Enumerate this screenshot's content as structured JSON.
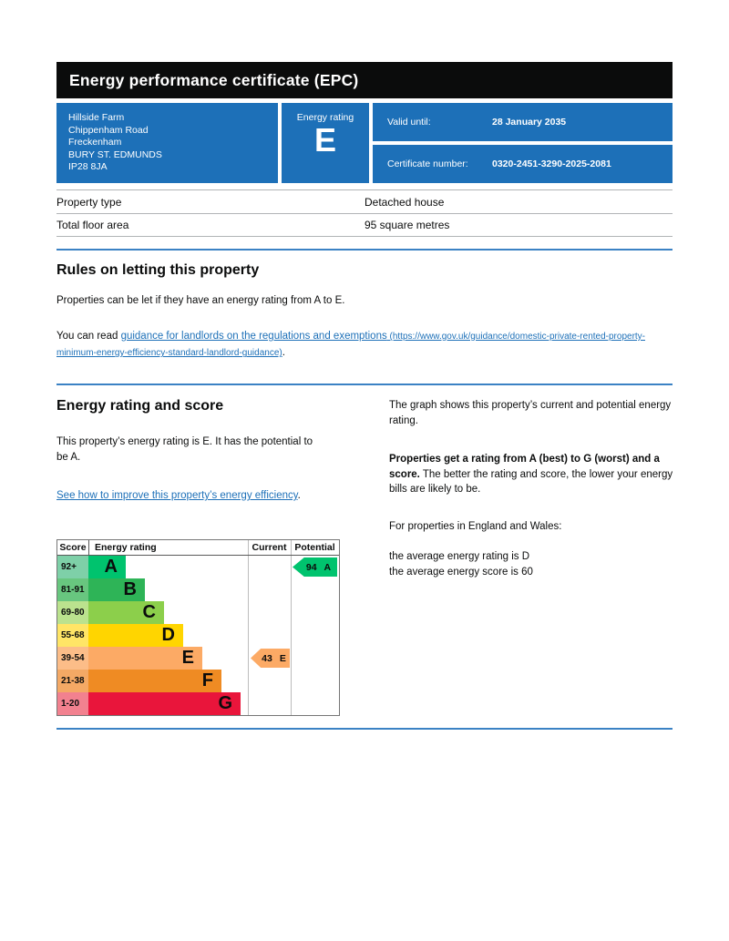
{
  "page": {
    "title": "Energy performance certificate (EPC)"
  },
  "header": {
    "address_lines": [
      "Hillside Farm",
      "Chippenham Road",
      "Freckenham",
      "BURY ST. EDMUNDS",
      "IP28 8JA"
    ],
    "energy_rating_label": "Energy rating",
    "energy_rating": "E",
    "valid_until_label": "Valid until:",
    "valid_until_value": "28 January 2035",
    "certificate_number_label": "Certificate number:",
    "certificate_number_value": "0320-2451-3290-2025-2081"
  },
  "facts": [
    {
      "label": "Property type",
      "value": "Detached house"
    },
    {
      "label": "Total floor area",
      "value": "95 square metres"
    }
  ],
  "rules": {
    "heading": "Rules on letting this property",
    "body": "Properties can be let if they have an energy rating from A to E.",
    "read_prefix": "You can read ",
    "link_text": "guidance for landlords on the regulations and exemptions",
    "link_url": " (https://www.gov.uk/guidance/domestic-private-rented-property-minimum-energy-efficiency-standard-landlord-guidance)",
    "suffix": "."
  },
  "rating_section": {
    "heading": "Energy rating and score",
    "body": "This property’s energy rating is E. It has the potential to be A.",
    "improve_link": "See how to improve this property’s energy efficiency",
    "improve_suffix": ".",
    "graph_intro": "The graph shows this property’s current and potential energy rating.",
    "explain_bold": "Properties get a rating from A (best) to G (worst) and a score.",
    "explain_rest": " The better the rating and score, the lower your energy bills are likely to be.",
    "region_line": "For properties in England and Wales:",
    "avg_rating_line": "the average energy rating is D",
    "avg_score_line": "the average energy score is 60"
  },
  "chart_data": {
    "type": "bar",
    "title": "Energy rating and score",
    "headers": {
      "score": "Score",
      "rating": "Energy rating",
      "current": "Current",
      "potential": "Potential"
    },
    "bands": [
      {
        "score_range": "92+",
        "letter": "A",
        "color": "#00c36e",
        "score_bg": "#7ed0a8"
      },
      {
        "score_range": "81-91",
        "letter": "B",
        "color": "#2eb457",
        "score_bg": "#68c67f"
      },
      {
        "score_range": "69-80",
        "letter": "C",
        "color": "#8ccf4b",
        "score_bg": "#bbe28e"
      },
      {
        "score_range": "55-68",
        "letter": "D",
        "color": "#ffd500",
        "score_bg": "#ffe566"
      },
      {
        "score_range": "39-54",
        "letter": "E",
        "color": "#fcaa65",
        "score_bg": "#fcbd88"
      },
      {
        "score_range": "21-38",
        "letter": "F",
        "color": "#ef8b23",
        "score_bg": "#f4a965"
      },
      {
        "score_range": "1-20",
        "letter": "G",
        "color": "#e9153b",
        "score_bg": "#f2818f"
      }
    ],
    "current": {
      "score": "43",
      "band": "E",
      "color": "#fcaa65"
    },
    "potential": {
      "score": "94",
      "band": "A",
      "color": "#00c36e"
    },
    "layout_hints": {
      "bands_order": "A best (top) to G worst (bottom)",
      "current_marker_row": "E",
      "potential_marker_row": "A"
    }
  },
  "colors": {
    "title_bar": "#0b0c0c",
    "brand_blue": "#1d70b8",
    "link_blue": "#1d70b8",
    "divider_blue": "#3b82c4",
    "table_border": "#b1b4b6"
  }
}
